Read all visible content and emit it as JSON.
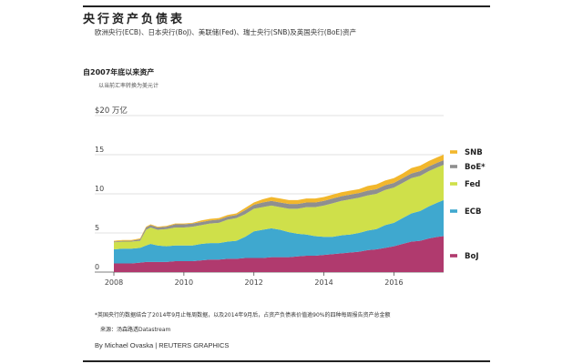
{
  "header": {
    "title": "央行资产负债表",
    "subtitle": "欧洲央行(ECB)、日本央行(BoJ)、美联储(Fed)、瑞士央行(SNB)及英国央行(BoE)资产"
  },
  "chart_data": {
    "type": "area",
    "stacked": true,
    "title": "自2007年底以来资产",
    "subtitle": "以当前汇率转换为美元计",
    "y_unit_label": "$20 万亿",
    "ylim": [
      0,
      20
    ],
    "yticks": [
      {
        "value": 0,
        "label": "0"
      },
      {
        "value": 5,
        "label": "5"
      },
      {
        "value": 10,
        "label": "10"
      },
      {
        "value": 15,
        "label": "15"
      },
      {
        "value": 20,
        "label": "$20 万亿"
      }
    ],
    "xlim": [
      2008.0,
      2017.42
    ],
    "xticks": [
      {
        "value": 2008,
        "label": "2008"
      },
      {
        "value": 2010,
        "label": "2010"
      },
      {
        "value": 2012,
        "label": "2012"
      },
      {
        "value": 2014,
        "label": "2014"
      },
      {
        "value": 2016,
        "label": "2016"
      }
    ],
    "grid": "horizontal",
    "legend_placement": "right, labels at series ends",
    "x": [
      2008.0,
      2008.25,
      2008.5,
      2008.75,
      2008.92,
      2009.05,
      2009.25,
      2009.5,
      2009.75,
      2010.0,
      2010.25,
      2010.5,
      2010.75,
      2011.0,
      2011.25,
      2011.5,
      2011.75,
      2012.0,
      2012.25,
      2012.5,
      2012.75,
      2013.0,
      2013.25,
      2013.5,
      2013.75,
      2014.0,
      2014.25,
      2014.5,
      2014.75,
      2015.0,
      2015.25,
      2015.5,
      2015.75,
      2016.0,
      2016.25,
      2016.5,
      2016.75,
      2017.0,
      2017.25,
      2017.42
    ],
    "series": [
      {
        "name": "BoJ",
        "color": "#b03a6e",
        "values": [
          1.1,
          1.1,
          1.1,
          1.2,
          1.3,
          1.3,
          1.3,
          1.3,
          1.4,
          1.4,
          1.4,
          1.5,
          1.6,
          1.6,
          1.7,
          1.7,
          1.8,
          1.8,
          1.8,
          1.9,
          1.9,
          1.9,
          2.0,
          2.1,
          2.1,
          2.2,
          2.3,
          2.4,
          2.5,
          2.6,
          2.8,
          2.9,
          3.1,
          3.3,
          3.6,
          3.9,
          4.0,
          4.3,
          4.5,
          4.6
        ]
      },
      {
        "name": "ECB",
        "color": "#3fa8cf",
        "values": [
          1.8,
          1.9,
          1.9,
          1.9,
          2.1,
          2.3,
          2.1,
          2.0,
          2.0,
          2.0,
          2.0,
          2.1,
          2.1,
          2.1,
          2.2,
          2.3,
          2.7,
          3.4,
          3.6,
          3.7,
          3.5,
          3.2,
          2.9,
          2.7,
          2.5,
          2.3,
          2.2,
          2.3,
          2.3,
          2.4,
          2.5,
          2.6,
          2.9,
          3.0,
          3.3,
          3.6,
          3.8,
          4.1,
          4.4,
          4.6
        ]
      },
      {
        "name": "Fed",
        "color": "#cfe04a",
        "values": [
          0.9,
          0.9,
          0.9,
          0.9,
          2.0,
          2.1,
          2.0,
          2.2,
          2.3,
          2.3,
          2.4,
          2.4,
          2.5,
          2.6,
          2.8,
          2.9,
          2.9,
          2.9,
          2.9,
          2.9,
          2.9,
          3.0,
          3.2,
          3.5,
          3.7,
          4.0,
          4.3,
          4.4,
          4.5,
          4.5,
          4.5,
          4.5,
          4.5,
          4.5,
          4.5,
          4.5,
          4.5,
          4.5,
          4.5,
          4.5
        ]
      },
      {
        "name": "BoE*",
        "color": "#8f8f8f",
        "values": [
          0.1,
          0.1,
          0.1,
          0.2,
          0.3,
          0.3,
          0.3,
          0.3,
          0.4,
          0.4,
          0.4,
          0.4,
          0.4,
          0.4,
          0.4,
          0.4,
          0.5,
          0.5,
          0.6,
          0.6,
          0.6,
          0.6,
          0.6,
          0.6,
          0.6,
          0.6,
          0.6,
          0.6,
          0.6,
          0.6,
          0.6,
          0.6,
          0.6,
          0.6,
          0.6,
          0.6,
          0.6,
          0.6,
          0.6,
          0.6
        ]
      },
      {
        "name": "SNB",
        "color": "#f2b72c",
        "values": [
          0.1,
          0.1,
          0.1,
          0.1,
          0.1,
          0.1,
          0.1,
          0.1,
          0.1,
          0.1,
          0.1,
          0.2,
          0.2,
          0.2,
          0.2,
          0.2,
          0.3,
          0.3,
          0.4,
          0.5,
          0.5,
          0.5,
          0.5,
          0.5,
          0.5,
          0.5,
          0.5,
          0.5,
          0.5,
          0.5,
          0.6,
          0.6,
          0.6,
          0.6,
          0.6,
          0.7,
          0.7,
          0.7,
          0.7,
          0.7
        ]
      }
    ]
  },
  "footnote": "*英国央行的数据结合了2014年9月止每周数据，以及2014年9月后，占资产负债表价值逾90%的四种每周报告资产总金额",
  "source": "来源：汤森路透Datastream",
  "byline": "By Michael Ovaska | REUTERS GRAPHICS"
}
